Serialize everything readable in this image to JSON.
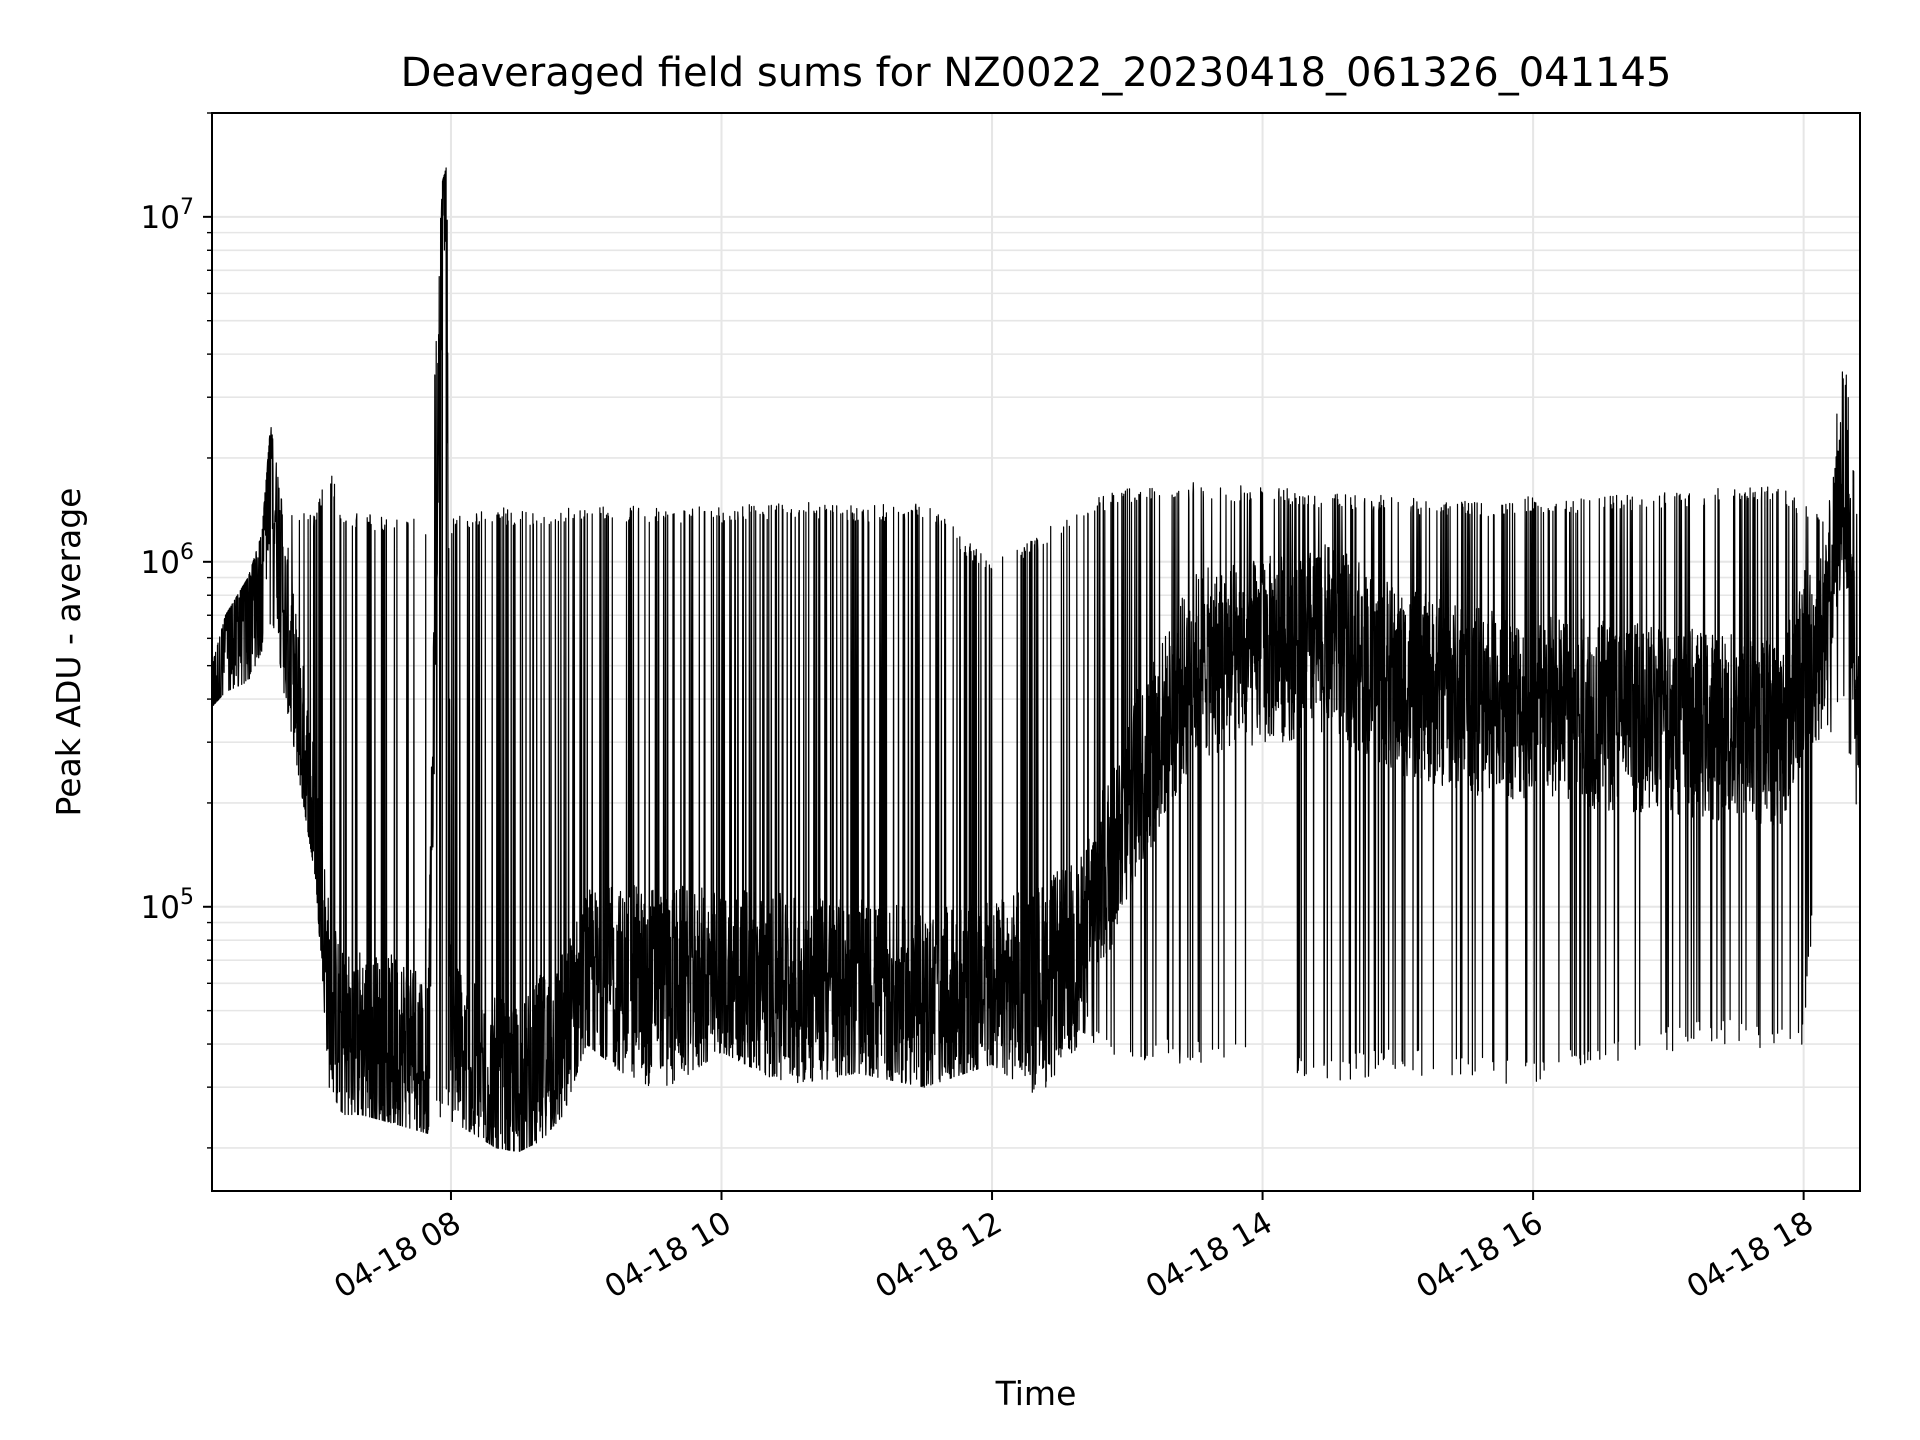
{
  "chart_data": {
    "type": "line",
    "title": "Deaveraged field sums for NZ0022_20230418_061326_041145",
    "xlabel": "Time",
    "ylabel": "Peak ADU - average",
    "yscale": "log",
    "xlim": [
      "2023-04-18T06:14:00",
      "2023-04-18T18:25:00"
    ],
    "ylim": [
      15000,
      20000000
    ],
    "grid": true,
    "legend": "none",
    "line_color": "#000000",
    "x_ticks": [
      {
        "time": "2023-04-18T08:00:00",
        "label": "04-18 08"
      },
      {
        "time": "2023-04-18T10:00:00",
        "label": "04-18 10"
      },
      {
        "time": "2023-04-18T12:00:00",
        "label": "04-18 12"
      },
      {
        "time": "2023-04-18T14:00:00",
        "label": "04-18 14"
      },
      {
        "time": "2023-04-18T16:00:00",
        "label": "04-18 16"
      },
      {
        "time": "2023-04-18T18:00:00",
        "label": "04-18 18"
      }
    ],
    "y_ticks": [
      {
        "value": 100000,
        "base": "10",
        "exp": "5"
      },
      {
        "value": 1000000,
        "base": "10",
        "exp": "6"
      },
      {
        "value": 10000000,
        "base": "10",
        "exp": "7"
      }
    ],
    "series": [
      {
        "x": [
          "2023-04-18T06:14:00",
          "2023-04-18T06:20:00",
          "2023-04-18T06:30:00",
          "2023-04-18T06:36:00",
          "2023-04-18T06:40:00",
          "2023-04-18T06:45:00",
          "2023-04-18T06:50:00",
          "2023-04-18T07:00:00",
          "2023-04-18T07:06:00",
          "2023-04-18T07:12:00",
          "2023-04-18T07:20:00",
          "2023-04-18T07:30:00",
          "2023-04-18T07:40:00",
          "2023-04-18T07:50:00",
          "2023-04-18T07:56:00",
          "2023-04-18T07:58:00",
          "2023-04-18T08:00:00",
          "2023-04-18T08:10:00",
          "2023-04-18T08:20:00",
          "2023-04-18T08:30:00",
          "2023-04-18T08:40:00",
          "2023-04-18T08:50:00",
          "2023-04-18T09:00:00",
          "2023-04-18T09:30:00",
          "2023-04-18T10:00:00",
          "2023-04-18T10:30:00",
          "2023-04-18T11:00:00",
          "2023-04-18T11:30:00",
          "2023-04-18T12:00:00",
          "2023-04-18T12:20:00",
          "2023-04-18T12:40:00",
          "2023-04-18T13:00:00",
          "2023-04-18T13:30:00",
          "2023-04-18T14:00:00",
          "2023-04-18T14:30:00",
          "2023-04-18T15:00:00",
          "2023-04-18T15:30:00",
          "2023-04-18T16:00:00",
          "2023-04-18T16:30:00",
          "2023-04-18T17:00:00",
          "2023-04-18T17:30:00",
          "2023-04-18T17:50:00",
          "2023-04-18T18:00:00",
          "2023-04-18T18:10:00",
          "2023-04-18T18:18:00",
          "2023-04-18T18:25:00"
        ],
        "y": [
          420000,
          560000,
          750000,
          900000,
          2400000,
          800000,
          450000,
          150000,
          55000,
          40000,
          42000,
          38000,
          40000,
          36000,
          12500000,
          14000000,
          40000,
          32000,
          29000,
          28000,
          34000,
          40000,
          60000,
          62000,
          60000,
          58000,
          56000,
          52000,
          55000,
          62000,
          75000,
          200000,
          500000,
          550000,
          600000,
          450000,
          400000,
          380000,
          360000,
          350000,
          330000,
          320000,
          500000,
          600000,
          2000000,
          300000
        ],
        "low": [
          380000,
          420000,
          450000,
          550000,
          600000,
          450000,
          300000,
          120000,
          30000,
          25000,
          25000,
          24000,
          23000,
          22000,
          25000,
          26000,
          24000,
          22000,
          20000,
          19500,
          21000,
          25000,
          40000,
          28000,
          38000,
          30000,
          33000,
          30000,
          35000,
          28000,
          40000,
          35000,
          35000,
          34000,
          31000,
          33000,
          31000,
          30000,
          34000,
          38000,
          40000,
          38000,
          40000,
          300000,
          350000,
          150000
        ],
        "high": [
          500000,
          700000,
          900000,
          1200000,
          2500000,
          1500000,
          1400000,
          1400000,
          1900000,
          1400000,
          1400000,
          1350000,
          1350000,
          1300000,
          12500000,
          14000000,
          1350000,
          1400000,
          1450000,
          1400000,
          1400000,
          1450000,
          1450000,
          1450000,
          1450000,
          1500000,
          1450000,
          1500000,
          1000000,
          1200000,
          1500000,
          1650000,
          1700000,
          1650000,
          1600000,
          1550000,
          1500000,
          1550000,
          1550000,
          1600000,
          1650000,
          1650000,
          1500000,
          1300000,
          4500000,
          1100000
        ]
      }
    ]
  }
}
